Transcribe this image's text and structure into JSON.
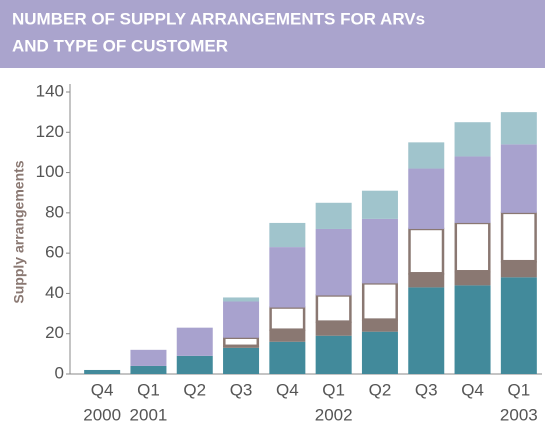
{
  "chart_data": {
    "type": "stacked_bar",
    "title": [
      "NUMBER OF SUPPLY ARRANGEMENTS FOR ARVs",
      "AND TYPE OF CUSTOMER"
    ],
    "y_label": "Supply arrangements",
    "categories": [
      "Q4",
      "Q1",
      "Q2",
      "Q3",
      "Q4",
      "Q1",
      "Q2",
      "Q3",
      "Q4",
      "Q1"
    ],
    "years": [
      "2000",
      "2001",
      null,
      null,
      null,
      "2002",
      null,
      null,
      null,
      "2003"
    ],
    "series": [
      {
        "color": "#428a9b",
        "values": [
          2,
          4,
          9,
          13,
          16,
          19,
          21,
          43,
          44,
          48
        ]
      },
      {
        "color": "#8a7872",
        "values": [
          0,
          0,
          0,
          1,
          6,
          7,
          6,
          7,
          7,
          8
        ]
      },
      {
        "color": "#ffffff",
        "outline": "#8a7872",
        "values": [
          0,
          0,
          0,
          4,
          11,
          13,
          18,
          22,
          24,
          24
        ]
      },
      {
        "color": "#a8a2ce",
        "values": [
          0,
          8,
          14,
          18,
          30,
          33,
          32,
          30,
          33,
          34
        ]
      },
      {
        "color": "#a0c4cc",
        "values": [
          0,
          0,
          0,
          2,
          12,
          13,
          14,
          13,
          17,
          16
        ]
      }
    ],
    "ylim": [
      0,
      140
    ],
    "yticks": [
      0,
      20,
      40,
      60,
      80,
      100,
      120,
      140
    ]
  }
}
